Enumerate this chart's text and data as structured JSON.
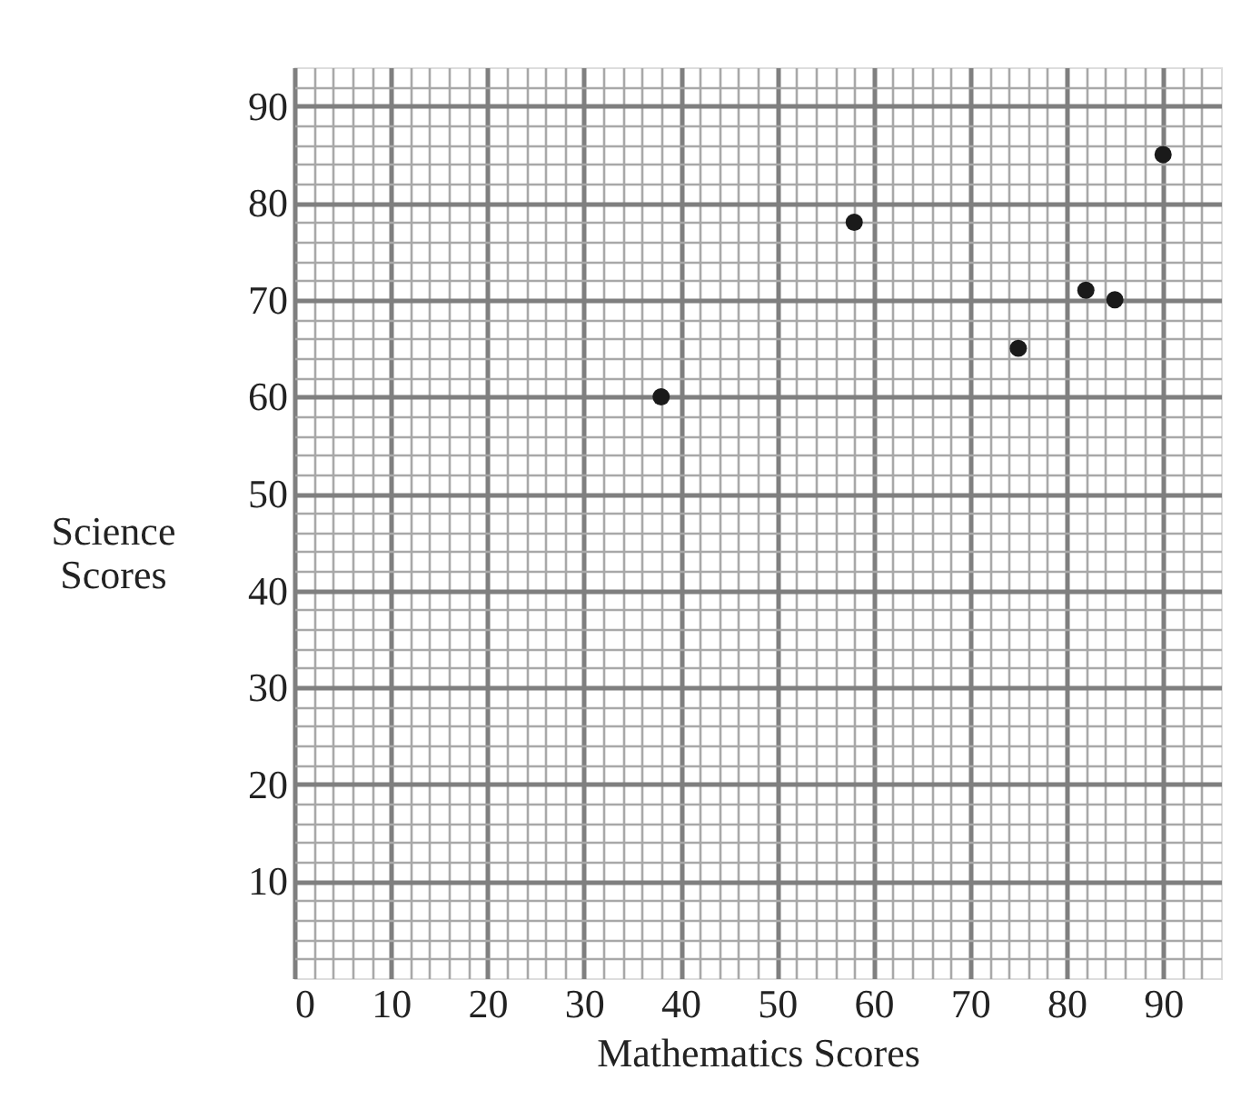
{
  "chart_data": {
    "type": "scatter",
    "xlabel": "Mathematics Scores",
    "ylabel": "Science Scores",
    "x": [
      38,
      58,
      75,
      82,
      85,
      90
    ],
    "series": [
      {
        "color": "#1a1a1a",
        "values": [
          60,
          78,
          65,
          71,
          70,
          85
        ]
      }
    ],
    "marker": "circle",
    "grid": true,
    "legend": false,
    "xlim": [
      0,
      96
    ],
    "ylim": [
      0,
      94
    ],
    "xticks": [
      0,
      {
        "value": 2,
        "label": null
      },
      {
        "value": 4,
        "label": null
      },
      {
        "value": 6,
        "label": null
      },
      {
        "value": 8,
        "label": null
      },
      10,
      {
        "value": 12,
        "label": null
      },
      {
        "value": 14,
        "label": null
      },
      {
        "value": 16,
        "label": null
      },
      {
        "value": 18,
        "label": null
      },
      20,
      {
        "value": 22,
        "label": null
      },
      {
        "value": 24,
        "label": null
      },
      {
        "value": 26,
        "label": null
      },
      {
        "value": 28,
        "label": null
      },
      30,
      {
        "value": 32,
        "label": null
      },
      {
        "value": 34,
        "label": null
      },
      {
        "value": 36,
        "label": null
      },
      {
        "value": 38,
        "label": null
      },
      40,
      {
        "value": 42,
        "label": null
      },
      {
        "value": 44,
        "label": null
      },
      {
        "value": 46,
        "label": null
      },
      {
        "value": 48,
        "label": null
      },
      50,
      {
        "value": 52,
        "label": null
      },
      {
        "value": 54,
        "label": null
      },
      {
        "value": 56,
        "label": null
      },
      {
        "value": 58,
        "label": null
      },
      60,
      {
        "value": 62,
        "label": null
      },
      {
        "value": 64,
        "label": null
      },
      {
        "value": 66,
        "label": null
      },
      {
        "value": 68,
        "label": null
      },
      70,
      {
        "value": 72,
        "label": null
      },
      {
        "value": 74,
        "label": null
      },
      {
        "value": 76,
        "label": null
      },
      {
        "value": 78,
        "label": null
      },
      80,
      {
        "value": 82,
        "label": null
      },
      {
        "value": 84,
        "label": null
      },
      {
        "value": 86,
        "label": null
      },
      {
        "value": 88,
        "label": null
      },
      90,
      {
        "value": 92,
        "label": null
      },
      {
        "value": 94,
        "label": null
      }
    ],
    "yticks": [
      {
        "value": 2,
        "label": null
      },
      {
        "value": 4,
        "label": null
      },
      {
        "value": 6,
        "label": null
      },
      {
        "value": 8,
        "label": null
      },
      10,
      {
        "value": 12,
        "label": null
      },
      {
        "value": 14,
        "label": null
      },
      {
        "value": 16,
        "label": null
      },
      {
        "value": 18,
        "label": null
      },
      20,
      {
        "value": 22,
        "label": null
      },
      {
        "value": 24,
        "label": null
      },
      {
        "value": 26,
        "label": null
      },
      {
        "value": 28,
        "label": null
      },
      30,
      {
        "value": 32,
        "label": null
      },
      {
        "value": 34,
        "label": null
      },
      {
        "value": 36,
        "label": null
      },
      {
        "value": 38,
        "label": null
      },
      40,
      {
        "value": 42,
        "label": null
      },
      {
        "value": 44,
        "label": null
      },
      {
        "value": 46,
        "label": null
      },
      {
        "value": 48,
        "label": null
      },
      50,
      {
        "value": 52,
        "label": null
      },
      {
        "value": 54,
        "label": null
      },
      {
        "value": 56,
        "label": null
      },
      {
        "value": 58,
        "label": null
      },
      60,
      {
        "value": 62,
        "label": null
      },
      {
        "value": 64,
        "label": null
      },
      {
        "value": 66,
        "label": null
      },
      {
        "value": 68,
        "label": null
      },
      70,
      {
        "value": 72,
        "label": null
      },
      {
        "value": 74,
        "label": null
      },
      {
        "value": 76,
        "label": null
      },
      {
        "value": 78,
        "label": null
      },
      80,
      {
        "value": 82,
        "label": null
      },
      {
        "value": 84,
        "label": null
      },
      {
        "value": 86,
        "label": null
      },
      {
        "value": 88,
        "label": null
      },
      90,
      {
        "value": 92,
        "label": null
      }
    ]
  }
}
